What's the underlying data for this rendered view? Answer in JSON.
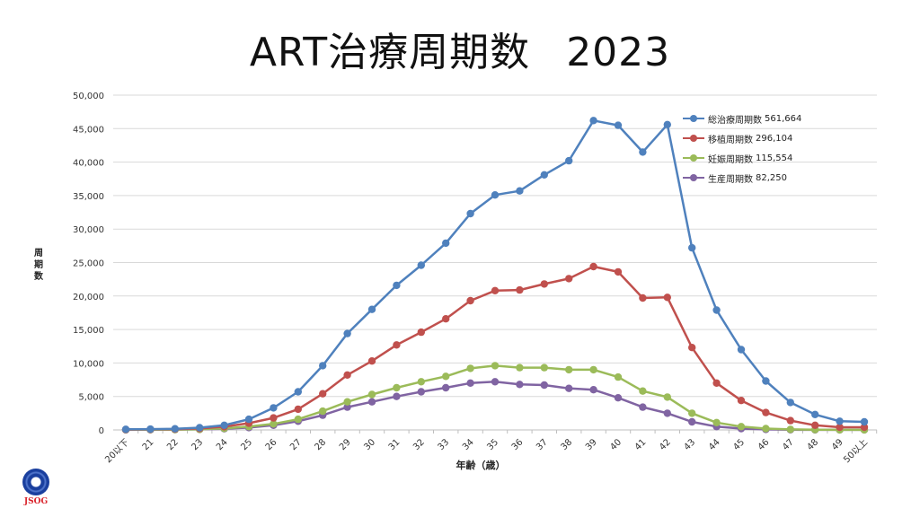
{
  "page": {
    "title_main": "ART治療周期数",
    "title_year": "2023",
    "logo_text": "JSOG"
  },
  "chart_data": {
    "type": "line",
    "title": "ART治療周期数 2023",
    "xlabel": "年齢（歳）",
    "ylabel": "周期数",
    "ylim": [
      0,
      50000
    ],
    "yticks": [
      0,
      5000,
      10000,
      15000,
      20000,
      25000,
      30000,
      35000,
      40000,
      45000,
      50000
    ],
    "ytick_labels": [
      "0",
      "5,000",
      "10,000",
      "15,000",
      "20,000",
      "25,000",
      "30,000",
      "35,000",
      "40,000",
      "45,000",
      "50,000"
    ],
    "grid": true,
    "legend_position": "upper right",
    "categories": [
      "20以下",
      "21",
      "22",
      "23",
      "24",
      "25",
      "26",
      "27",
      "28",
      "29",
      "30",
      "31",
      "32",
      "33",
      "34",
      "35",
      "36",
      "37",
      "38",
      "39",
      "40",
      "41",
      "42",
      "43",
      "44",
      "45",
      "46",
      "47",
      "48",
      "49",
      "50以上"
    ],
    "series": [
      {
        "name": "総治療周期数",
        "total": "561,664",
        "color": "#4f81bd",
        "values": [
          100,
          120,
          180,
          330,
          700,
          1600,
          3300,
          5700,
          9600,
          14400,
          18000,
          21600,
          24600,
          27900,
          32300,
          35100,
          35700,
          38100,
          40200,
          46200,
          45500,
          41500,
          45600,
          27200,
          17900,
          12000,
          7300,
          4100,
          2300,
          1300,
          1200
        ]
      },
      {
        "name": "移植周期数",
        "total": "296,104",
        "color": "#c0504d",
        "values": [
          60,
          80,
          120,
          220,
          480,
          1000,
          1800,
          3100,
          5400,
          8200,
          10300,
          12700,
          14600,
          16600,
          19300,
          20800,
          20900,
          21800,
          22600,
          24400,
          23600,
          19700,
          19800,
          12300,
          7000,
          4400,
          2600,
          1400,
          700,
          400,
          400
        ]
      },
      {
        "name": "妊娠周期数",
        "total": "115,554",
        "color": "#9bbb59",
        "values": [
          30,
          40,
          60,
          100,
          230,
          500,
          900,
          1600,
          2800,
          4200,
          5300,
          6300,
          7200,
          8000,
          9200,
          9600,
          9300,
          9300,
          9000,
          9000,
          7900,
          5800,
          4900,
          2500,
          1100,
          500,
          200,
          80,
          40,
          20,
          20
        ]
      },
      {
        "name": "生産周期数",
        "total": "82,250",
        "color": "#8064a2",
        "values": [
          20,
          30,
          50,
          80,
          170,
          350,
          700,
          1300,
          2200,
          3400,
          4200,
          5000,
          5700,
          6300,
          7000,
          7200,
          6800,
          6700,
          6200,
          6000,
          4800,
          3400,
          2500,
          1200,
          500,
          200,
          80,
          30,
          15,
          10,
          10
        ]
      }
    ]
  }
}
